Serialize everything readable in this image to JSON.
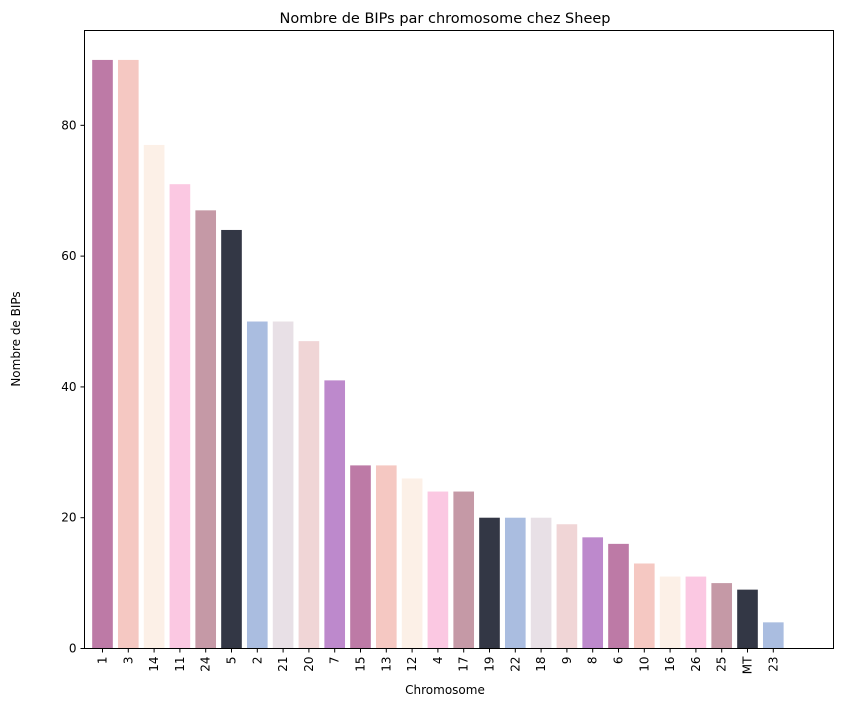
{
  "chart_data": {
    "type": "bar",
    "title": "Nombre de BIPs par chromosome chez Sheep",
    "xlabel": "Chromosome",
    "ylabel": "Nombre de BIPs",
    "ylim": [
      0,
      94.5
    ],
    "yticks": [
      0,
      20,
      40,
      60,
      80
    ],
    "grid": false,
    "categories": [
      "1",
      "3",
      "14",
      "11",
      "24",
      "5",
      "2",
      "21",
      "20",
      "7",
      "15",
      "13",
      "12",
      "4",
      "17",
      "19",
      "22",
      "18",
      "9",
      "8",
      "6",
      "10",
      "16",
      "26",
      "25",
      "MT",
      "23"
    ],
    "values": [
      90,
      90,
      77,
      71,
      67,
      64,
      50,
      50,
      47,
      41,
      28,
      28,
      26,
      24,
      24,
      20,
      20,
      20,
      19,
      17,
      16,
      13,
      11,
      11,
      10,
      9,
      4
    ],
    "palette": [
      "#bd7aa6",
      "#f5c8c2",
      "#fcf0e7",
      "#fbc8e2",
      "#c599a6",
      "#333745",
      "#aabde0",
      "#e8e0e6",
      "#f0d5d6",
      "#bd89cc"
    ]
  }
}
